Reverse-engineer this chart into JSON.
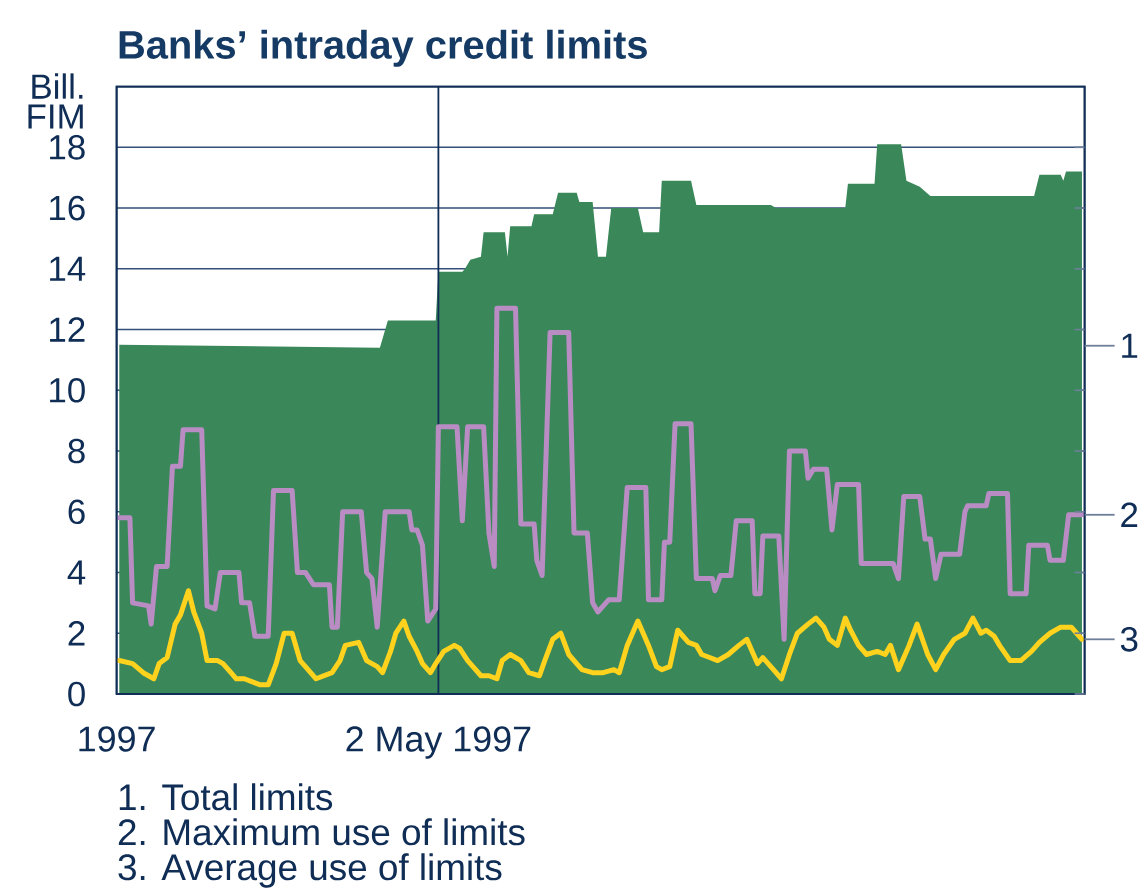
{
  "chart_data": {
    "type": "line",
    "title": "Banks’ intraday credit limits",
    "ylabel": "Bill. FIM",
    "xlim": [
      "1997-01-01",
      "1997-12-31"
    ],
    "ylim": [
      0,
      20
    ],
    "xticks": [
      {
        "value": "1997-01-01",
        "label": "1997"
      },
      {
        "value": "1997-05-02",
        "label": "2 May 1997"
      }
    ],
    "yticks": [
      0,
      2,
      4,
      6,
      8,
      10,
      12,
      14,
      16,
      18
    ],
    "grid": "y",
    "ref_lines": [
      {
        "axis": "x",
        "value": "1997-05-02",
        "color": "#0f2d55"
      }
    ],
    "series": [
      {
        "name": "1",
        "type": "area",
        "color": "#3a885a",
        "x": [
          "1997-01-02",
          "1997-04-10",
          "1997-04-13",
          "1997-05-01",
          "1997-05-02",
          "1997-05-11",
          "1997-05-12",
          "1997-05-14",
          "1997-05-18",
          "1997-05-19",
          "1997-05-27",
          "1997-05-28",
          "1997-05-29",
          "1997-06-06",
          "1997-06-07",
          "1997-06-14",
          "1997-06-16",
          "1997-06-23",
          "1997-06-24",
          "1997-06-29",
          "1997-07-01",
          "1997-07-04",
          "1997-07-06",
          "1997-07-16",
          "1997-07-18",
          "1997-07-24",
          "1997-07-25",
          "1997-08-05",
          "1997-08-07",
          "1997-09-04",
          "1997-09-06",
          "1997-10-02",
          "1997-10-03",
          "1997-10-13",
          "1997-10-14",
          "1997-10-23",
          "1997-10-25",
          "1997-10-30",
          "1997-11-03",
          "1997-12-12",
          "1997-12-14",
          "1997-12-22",
          "1997-12-23",
          "1997-12-24",
          "1997-12-30"
        ],
        "values": [
          11.5,
          11.4,
          12.3,
          12.3,
          13.9,
          13.9,
          14.0,
          14.3,
          14.4,
          15.2,
          15.2,
          14.4,
          15.4,
          15.4,
          15.8,
          15.8,
          16.5,
          16.5,
          16.2,
          16.2,
          14.4,
          14.4,
          16.0,
          16.0,
          15.2,
          15.2,
          16.9,
          16.9,
          16.1,
          16.1,
          16.0,
          16.0,
          16.8,
          16.8,
          18.1,
          18.1,
          16.9,
          16.7,
          16.4,
          16.4,
          17.1,
          17.1,
          16.9,
          17.2,
          17.2
        ]
      },
      {
        "name": "2",
        "color": "#b98cc3",
        "x": [
          "1997-01-02",
          "1997-01-06",
          "1997-01-07",
          "1997-01-13",
          "1997-01-14",
          "1997-01-16",
          "1997-01-20",
          "1997-01-22",
          "1997-01-25",
          "1997-01-26",
          "1997-02-02",
          "1997-02-04",
          "1997-02-07",
          "1997-02-09",
          "1997-02-16",
          "1997-02-17",
          "1997-02-20",
          "1997-02-22",
          "1997-02-27",
          "1997-03-01",
          "1997-03-08",
          "1997-03-10",
          "1997-03-13",
          "1997-03-16",
          "1997-03-22",
          "1997-03-23",
          "1997-03-25",
          "1997-03-27",
          "1997-04-03",
          "1997-04-05",
          "1997-04-07",
          "1997-04-09",
          "1997-04-12",
          "1997-04-21",
          "1997-04-22",
          "1997-04-24",
          "1997-04-26",
          "1997-04-28",
          "1997-05-01",
          "1997-05-02",
          "1997-05-09",
          "1997-05-11",
          "1997-05-13",
          "1997-05-19",
          "1997-05-21",
          "1997-05-23",
          "1997-05-24",
          "1997-05-31",
          "1997-06-02",
          "1997-06-07",
          "1997-06-08",
          "1997-06-10",
          "1997-06-13",
          "1997-06-20",
          "1997-06-22",
          "1997-06-27",
          "1997-06-29",
          "1997-07-01",
          "1997-07-05",
          "1997-07-09",
          "1997-07-10",
          "1997-07-12",
          "1997-07-19",
          "1997-07-20",
          "1997-07-25",
          "1997-07-26",
          "1997-07-28",
          "1997-07-30",
          "1997-08-05",
          "1997-08-07",
          "1997-08-13",
          "1997-08-14",
          "1997-08-16",
          "1997-08-20",
          "1997-08-22",
          "1997-08-28",
          "1997-08-29",
          "1997-08-31",
          "1997-09-01",
          "1997-09-07",
          "1997-09-09",
          "1997-09-11",
          "1997-09-17",
          "1997-09-18",
          "1997-09-20",
          "1997-09-25",
          "1997-09-27",
          "1997-09-29",
          "1997-10-07",
          "1997-10-08",
          "1997-10-20",
          "1997-10-22",
          "1997-10-24",
          "1997-10-30",
          "1997-11-01",
          "1997-11-03",
          "1997-11-05",
          "1997-11-07",
          "1997-11-14",
          "1997-11-16",
          "1997-11-17",
          "1997-11-24",
          "1997-11-25",
          "1997-12-02",
          "1997-12-03",
          "1997-12-09",
          "1997-12-10",
          "1997-12-17",
          "1997-12-18",
          "1997-12-23",
          "1997-12-25",
          "1997-12-30"
        ],
        "values": [
          5.8,
          5.8,
          3.0,
          2.9,
          2.3,
          4.2,
          4.2,
          7.5,
          7.5,
          8.7,
          8.7,
          2.9,
          2.8,
          4.0,
          4.0,
          3.0,
          3.0,
          1.9,
          1.9,
          6.7,
          6.7,
          4.0,
          4.0,
          3.6,
          3.6,
          2.2,
          2.2,
          6.0,
          6.0,
          4.0,
          3.8,
          2.2,
          6.0,
          6.0,
          5.4,
          5.4,
          4.9,
          2.4,
          2.8,
          8.8,
          8.8,
          5.7,
          8.8,
          8.8,
          5.3,
          4.2,
          12.7,
          12.7,
          5.6,
          5.6,
          4.4,
          3.9,
          11.9,
          11.9,
          5.3,
          5.3,
          3.0,
          2.7,
          3.1,
          3.1,
          4.3,
          6.8,
          6.8,
          3.1,
          3.1,
          5.0,
          5.0,
          8.9,
          8.9,
          3.8,
          3.8,
          3.4,
          3.9,
          3.9,
          5.7,
          5.7,
          3.3,
          3.3,
          5.2,
          5.2,
          1.8,
          8.0,
          8.0,
          7.1,
          7.4,
          7.4,
          5.4,
          6.9,
          6.9,
          4.3,
          4.3,
          3.8,
          6.5,
          6.5,
          5.1,
          5.1,
          3.8,
          4.6,
          4.6,
          6.0,
          6.2,
          6.2,
          6.6,
          6.6,
          3.3,
          3.3,
          4.9,
          4.9,
          4.4,
          4.4,
          5.9,
          5.9
        ]
      },
      {
        "name": "3",
        "color": "#ffd21e",
        "x": [
          "1997-01-02",
          "1997-01-07",
          "1997-01-11",
          "1997-01-15",
          "1997-01-17",
          "1997-01-20",
          "1997-01-23",
          "1997-01-25",
          "1997-01-28",
          "1997-01-30",
          "1997-02-02",
          "1997-02-04",
          "1997-02-08",
          "1997-02-10",
          "1997-02-13",
          "1997-02-15",
          "1997-02-18",
          "1997-02-24",
          "1997-02-27",
          "1997-03-02",
          "1997-03-05",
          "1997-03-08",
          "1997-03-11",
          "1997-03-13",
          "1997-03-17",
          "1997-03-20",
          "1997-03-23",
          "1997-03-26",
          "1997-03-28",
          "1997-04-02",
          "1997-04-05",
          "1997-04-09",
          "1997-04-11",
          "1997-04-14",
          "1997-04-16",
          "1997-04-19",
          "1997-04-21",
          "1997-04-24",
          "1997-04-26",
          "1997-04-29",
          "1997-05-01",
          "1997-05-04",
          "1997-05-08",
          "1997-05-10",
          "1997-05-13",
          "1997-05-15",
          "1997-05-18",
          "1997-05-21",
          "1997-05-24",
          "1997-05-26",
          "1997-05-29",
          "1997-06-02",
          "1997-06-05",
          "1997-06-09",
          "1997-06-11",
          "1997-06-14",
          "1997-06-17",
          "1997-06-20",
          "1997-06-23",
          "1997-06-25",
          "1997-06-29",
          "1997-07-03",
          "1997-07-07",
          "1997-07-09",
          "1997-07-12",
          "1997-07-14",
          "1997-07-16",
          "1997-07-18",
          "1997-07-20",
          "1997-07-23",
          "1997-07-25",
          "1997-07-28",
          "1997-07-31",
          "1997-08-02",
          "1997-08-04",
          "1997-08-07",
          "1997-08-09",
          "1997-08-12",
          "1997-08-15",
          "1997-08-19",
          "1997-08-23",
          "1997-08-26",
          "1997-08-28",
          "1997-08-30",
          "1997-09-01",
          "1997-09-03",
          "1997-09-05",
          "1997-09-08",
          "1997-09-11",
          "1997-09-14",
          "1997-09-18",
          "1997-09-21",
          "1997-09-24",
          "1997-09-26",
          "1997-09-29",
          "1997-10-02",
          "1997-10-04",
          "1997-10-07",
          "1997-10-10",
          "1997-10-14",
          "1997-10-17",
          "1997-10-19",
          "1997-10-22",
          "1997-10-26",
          "1997-10-29",
          "1997-11-02",
          "1997-11-05",
          "1997-11-08",
          "1997-11-12",
          "1997-11-16",
          "1997-11-19",
          "1997-11-22",
          "1997-11-24",
          "1997-11-27",
          "1997-11-29",
          "1997-12-03",
          "1997-12-07",
          "1997-12-11",
          "1997-12-14",
          "1997-12-18",
          "1997-12-22",
          "1997-12-26",
          "1997-12-28",
          "1997-12-30"
        ],
        "values": [
          1.1,
          1.0,
          0.7,
          0.5,
          1.0,
          1.2,
          2.3,
          2.6,
          3.4,
          2.7,
          2.0,
          1.1,
          1.1,
          1.0,
          0.7,
          0.5,
          0.5,
          0.3,
          0.3,
          1.0,
          2.0,
          2.0,
          1.1,
          0.9,
          0.5,
          0.6,
          0.7,
          1.1,
          1.6,
          1.7,
          1.1,
          0.9,
          0.7,
          1.4,
          2.0,
          2.4,
          1.9,
          1.4,
          1.0,
          0.7,
          1.0,
          1.4,
          1.6,
          1.5,
          1.1,
          0.9,
          0.6,
          0.6,
          0.5,
          1.1,
          1.3,
          1.1,
          0.7,
          0.6,
          1.1,
          1.8,
          2.0,
          1.3,
          1.0,
          0.8,
          0.7,
          0.7,
          0.8,
          0.7,
          1.6,
          2.0,
          2.4,
          2.0,
          1.6,
          0.9,
          0.8,
          0.9,
          2.1,
          1.9,
          1.7,
          1.6,
          1.3,
          1.2,
          1.1,
          1.3,
          1.6,
          1.8,
          1.4,
          1.0,
          1.2,
          1.0,
          0.8,
          0.5,
          1.3,
          2.0,
          2.3,
          2.5,
          2.2,
          1.8,
          1.6,
          2.5,
          2.1,
          1.6,
          1.3,
          1.4,
          1.3,
          1.6,
          0.8,
          1.6,
          2.3,
          1.3,
          0.8,
          1.3,
          1.8,
          2.0,
          2.5,
          2.0,
          2.1,
          1.9,
          1.6,
          1.1,
          1.1,
          1.4,
          1.7,
          2.0,
          2.2,
          2.2,
          2.0,
          1.8
        ]
      }
    ],
    "annotations": [
      "1. Total limits",
      "2. Maximum use of limits",
      "3. Average use of limits"
    ]
  }
}
